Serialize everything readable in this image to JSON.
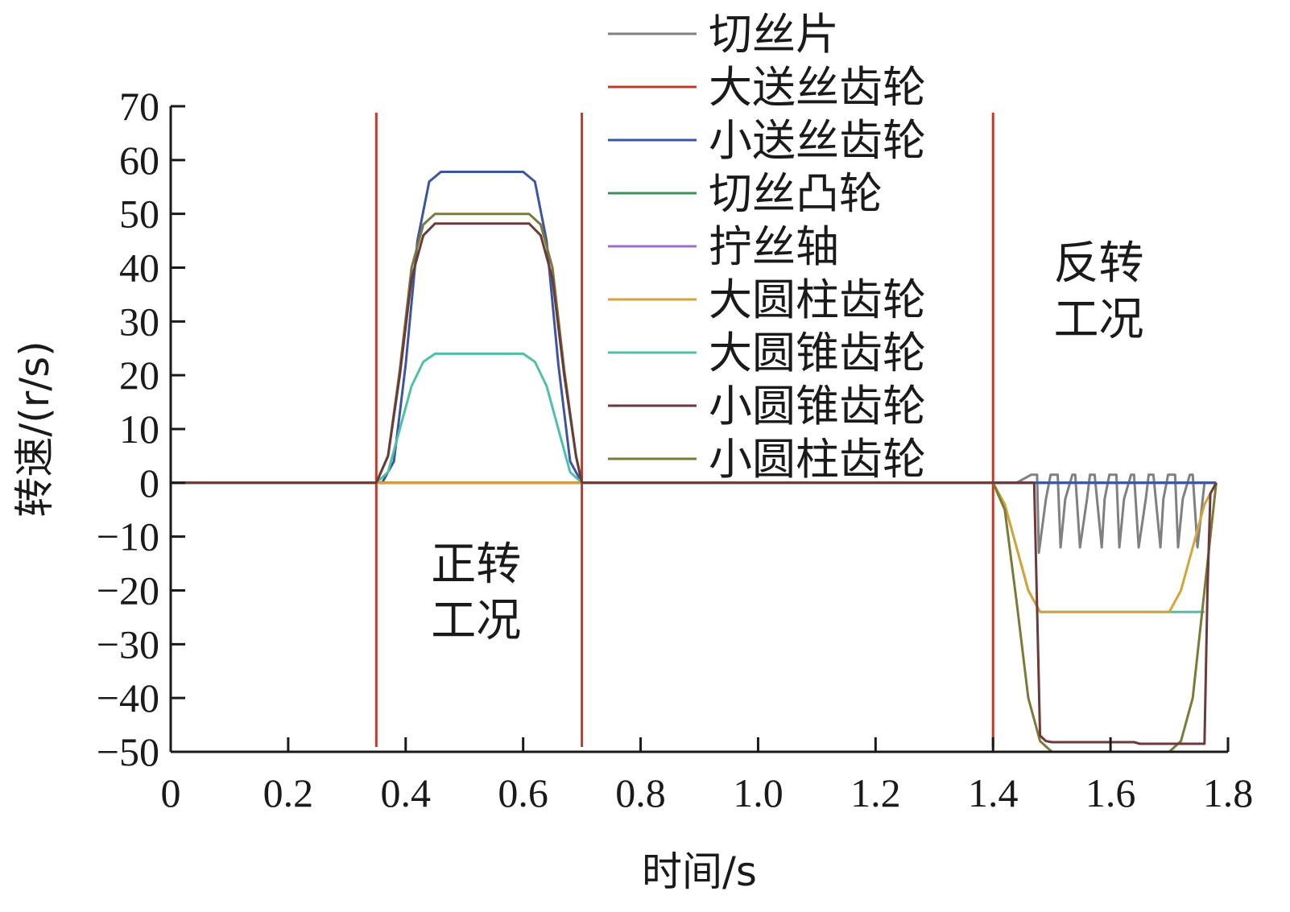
{
  "chart_data": {
    "type": "line",
    "title": "",
    "xlabel": "时间/s",
    "ylabel": "转速/(r/s)",
    "xlim": [
      0,
      1.8
    ],
    "ylim": [
      -50,
      70
    ],
    "xticks": [
      0,
      0.2,
      0.4,
      0.6,
      0.8,
      1.0,
      1.2,
      1.4,
      1.6,
      1.8
    ],
    "xtick_labels": [
      "0",
      "0.2",
      "0.4",
      "0.6",
      "0.8",
      "1.0",
      "1.2",
      "1.4",
      "1.6",
      "1.8"
    ],
    "yticks": [
      70,
      60,
      50,
      40,
      30,
      20,
      10,
      0,
      -10,
      -20,
      -30,
      -40,
      -50
    ],
    "ytick_labels": [
      "70",
      "60",
      "50",
      "40",
      "30",
      "20",
      "10",
      "0",
      "−10",
      "−20",
      "−30",
      "−40",
      "−50"
    ],
    "grid": false,
    "legend_position": "top-center",
    "vlines": [
      0.35,
      0.7,
      1.4
    ],
    "vline_color": "#c0392b",
    "annotations": [
      {
        "text": [
          "正转",
          "工况"
        ],
        "x": 0.52,
        "y": -18
      },
      {
        "text": [
          "反转",
          "工况"
        ],
        "x": 1.58,
        "y": 38
      }
    ],
    "series": [
      {
        "name": "切丝片",
        "color": "#808080",
        "x": [
          0,
          1.44,
          1.465,
          1.475,
          1.478,
          1.49,
          1.498,
          1.51,
          1.515,
          1.523,
          1.535,
          1.54,
          1.548,
          1.56,
          1.565,
          1.573,
          1.585,
          1.59,
          1.598,
          1.61,
          1.615,
          1.623,
          1.635,
          1.64,
          1.648,
          1.66,
          1.665,
          1.673,
          1.685,
          1.69,
          1.698,
          1.71,
          1.715,
          1.723,
          1.735,
          1.74,
          1.748,
          1.76,
          1.78
        ],
        "y": [
          0,
          0,
          1.5,
          1.5,
          -13,
          -3,
          1.5,
          1.5,
          -12,
          -3,
          1.5,
          1.5,
          -12,
          -3,
          1.5,
          1.5,
          -12,
          -3,
          1.5,
          1.5,
          -12,
          -3,
          1.5,
          1.5,
          -12,
          -3,
          1.5,
          1.5,
          -12,
          -3,
          1.5,
          1.5,
          -12,
          -3,
          1.5,
          1.5,
          -12,
          0,
          0
        ]
      },
      {
        "name": "大送丝齿轮",
        "color": "#c0392b",
        "x": [
          0,
          1.78
        ],
        "y": [
          0,
          0
        ]
      },
      {
        "name": "小送丝齿轮",
        "color": "#3b55a0",
        "x": [
          0,
          0.36,
          0.38,
          0.4,
          0.42,
          0.44,
          0.46,
          0.6,
          0.62,
          0.64,
          0.66,
          0.68,
          0.7,
          1.78
        ],
        "y": [
          0,
          0,
          4,
          22,
          45,
          56,
          57.8,
          57.8,
          56,
          45,
          22,
          4,
          0,
          0
        ]
      },
      {
        "name": "切丝凸轮",
        "color": "#3a8f5a",
        "x": [
          0,
          1.78
        ],
        "y": [
          0,
          0
        ]
      },
      {
        "name": "拧丝轴",
        "color": "#9b6fc7",
        "x": [
          0,
          1.78
        ],
        "y": [
          0,
          0
        ]
      },
      {
        "name": "大圆柱齿轮",
        "color": "#d4a33a",
        "x": [
          0,
          1.4,
          1.42,
          1.44,
          1.46,
          1.48,
          1.5,
          1.7,
          1.72,
          1.74,
          1.76,
          1.78
        ],
        "y": [
          0,
          0,
          -4,
          -12,
          -20,
          -24,
          -24,
          -24,
          -20,
          -12,
          -4,
          0
        ]
      },
      {
        "name": "大圆锥齿轮",
        "color": "#4fbfa8",
        "x": [
          0,
          0.35,
          0.37,
          0.39,
          0.41,
          0.43,
          0.45,
          0.6,
          0.62,
          0.64,
          0.66,
          0.68,
          0.7,
          1.4,
          1.42,
          1.44,
          1.46,
          1.48,
          1.49,
          1.5,
          1.76
        ],
        "y": [
          0,
          0,
          2,
          10,
          18,
          22.5,
          24,
          24,
          22.5,
          18,
          10,
          2,
          0,
          0,
          -4,
          -12,
          -20,
          -24,
          -24,
          -24,
          -24
        ]
      },
      {
        "name": "小圆锥齿轮",
        "color": "#6b3a3a",
        "x": [
          0,
          0.35,
          0.37,
          0.39,
          0.41,
          0.43,
          0.45,
          0.61,
          0.63,
          0.65,
          0.67,
          0.69,
          0.7,
          1.4,
          1.47,
          1.48,
          1.49,
          1.5,
          1.64,
          1.65,
          1.76,
          1.765,
          1.77,
          1.78
        ],
        "y": [
          0,
          0,
          5,
          20,
          38,
          46,
          48.2,
          48.2,
          46,
          38,
          20,
          5,
          0,
          0,
          0,
          -47,
          -48,
          -48.2,
          -48.2,
          -48.5,
          -48.5,
          -20,
          -2,
          0
        ]
      },
      {
        "name": "小圆柱齿轮",
        "color": "#7a7a3a",
        "x": [
          0,
          0.35,
          0.37,
          0.39,
          0.41,
          0.43,
          0.45,
          0.61,
          0.63,
          0.65,
          0.67,
          0.69,
          0.7,
          1.4,
          1.42,
          1.44,
          1.46,
          1.48,
          1.5,
          1.7,
          1.72,
          1.74,
          1.76,
          1.78
        ],
        "y": [
          0,
          0,
          5,
          21,
          40,
          48,
          50,
          50,
          48,
          40,
          21,
          5,
          0,
          0,
          -5,
          -22,
          -40,
          -48,
          -50,
          -50,
          -48,
          -40,
          -20,
          0
        ]
      }
    ]
  }
}
